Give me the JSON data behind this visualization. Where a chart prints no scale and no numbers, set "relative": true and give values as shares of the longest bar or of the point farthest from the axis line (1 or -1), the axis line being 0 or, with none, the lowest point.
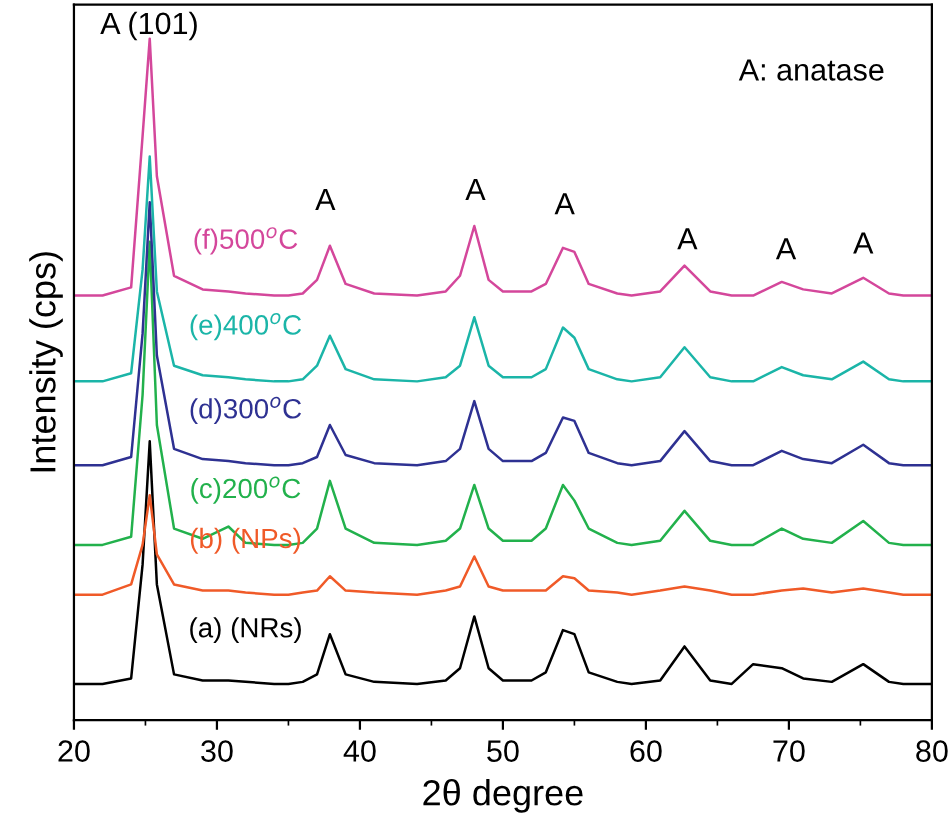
{
  "chart_data": {
    "type": "line",
    "relative": true,
    "xlabel": "2θ degree",
    "ylabel": "Intensity (cps)",
    "x": [
      20,
      21,
      22,
      24,
      24.8,
      25.3,
      25.8,
      27,
      29,
      30.8,
      32,
      34,
      35,
      36,
      37,
      37.9,
      39,
      41,
      44,
      46,
      47,
      48,
      49,
      50,
      52,
      53,
      54.2,
      55,
      56,
      58,
      59,
      61,
      62.7,
      64.5,
      66,
      67.5,
      69.5,
      71,
      73,
      75.2,
      77,
      78,
      80
    ],
    "xlim": [
      20,
      80
    ],
    "xticks": [
      20,
      30,
      40,
      50,
      60,
      70,
      80
    ],
    "grid": false,
    "legend": false,
    "marker": "none",
    "line_style": "solid",
    "series": [
      {
        "name": "(a) (NRs)",
        "color": "#000000",
        "values": [
          0.053,
          0.053,
          0.053,
          0.061,
          0.228,
          0.409,
          0.199,
          0.067,
          0.058,
          0.058,
          0.056,
          0.053,
          0.053,
          0.056,
          0.067,
          0.126,
          0.067,
          0.056,
          0.053,
          0.058,
          0.076,
          0.152,
          0.076,
          0.058,
          0.058,
          0.07,
          0.132,
          0.126,
          0.07,
          0.056,
          0.053,
          0.058,
          0.108,
          0.058,
          0.053,
          0.082,
          0.076,
          0.061,
          0.056,
          0.082,
          0.056,
          0.053,
          0.053
        ]
      },
      {
        "name": "(b) (NPs)",
        "color": "#f05a28",
        "values": [
          0.184,
          0.184,
          0.184,
          0.199,
          0.257,
          0.33,
          0.243,
          0.199,
          0.19,
          0.19,
          0.187,
          0.184,
          0.184,
          0.187,
          0.19,
          0.211,
          0.19,
          0.187,
          0.184,
          0.19,
          0.196,
          0.24,
          0.196,
          0.19,
          0.19,
          0.19,
          0.211,
          0.208,
          0.19,
          0.187,
          0.184,
          0.19,
          0.196,
          0.19,
          0.184,
          0.184,
          0.19,
          0.193,
          0.187,
          0.193,
          0.187,
          0.184,
          0.184
        ]
      },
      {
        "name": "(c)200$^{o}$C",
        "color": "#22b14c",
        "values": [
          0.257,
          0.257,
          0.257,
          0.269,
          0.477,
          0.702,
          0.433,
          0.281,
          0.266,
          0.284,
          0.26,
          0.257,
          0.257,
          0.26,
          0.281,
          0.351,
          0.281,
          0.26,
          0.257,
          0.263,
          0.281,
          0.345,
          0.281,
          0.263,
          0.263,
          0.281,
          0.345,
          0.322,
          0.281,
          0.26,
          0.257,
          0.263,
          0.307,
          0.263,
          0.257,
          0.257,
          0.281,
          0.266,
          0.26,
          0.292,
          0.26,
          0.257,
          0.257
        ]
      },
      {
        "name": "(d)300$^{o}$C",
        "color": "#2e3192",
        "values": [
          0.374,
          0.374,
          0.374,
          0.386,
          0.567,
          0.76,
          0.535,
          0.398,
          0.383,
          0.38,
          0.377,
          0.374,
          0.374,
          0.377,
          0.386,
          0.433,
          0.389,
          0.377,
          0.374,
          0.38,
          0.398,
          0.468,
          0.398,
          0.38,
          0.38,
          0.392,
          0.444,
          0.439,
          0.392,
          0.377,
          0.374,
          0.38,
          0.424,
          0.38,
          0.374,
          0.374,
          0.395,
          0.383,
          0.377,
          0.404,
          0.377,
          0.374,
          0.374
        ]
      },
      {
        "name": "(e)400$^{o}$C",
        "color": "#1bb5a8",
        "values": [
          0.497,
          0.497,
          0.497,
          0.509,
          0.661,
          0.827,
          0.629,
          0.52,
          0.506,
          0.503,
          0.5,
          0.497,
          0.497,
          0.5,
          0.52,
          0.564,
          0.515,
          0.5,
          0.497,
          0.503,
          0.52,
          0.591,
          0.52,
          0.503,
          0.503,
          0.515,
          0.576,
          0.561,
          0.515,
          0.5,
          0.497,
          0.503,
          0.547,
          0.503,
          0.497,
          0.497,
          0.518,
          0.506,
          0.5,
          0.526,
          0.5,
          0.497,
          0.497
        ]
      },
      {
        "name": "(f)500$^{o}$C",
        "color": "#d4479b",
        "values": [
          0.623,
          0.623,
          0.623,
          0.635,
          0.857,
          1,
          0.798,
          0.652,
          0.632,
          0.629,
          0.626,
          0.623,
          0.623,
          0.626,
          0.646,
          0.696,
          0.64,
          0.626,
          0.623,
          0.629,
          0.652,
          0.725,
          0.646,
          0.629,
          0.629,
          0.64,
          0.693,
          0.687,
          0.64,
          0.626,
          0.623,
          0.629,
          0.667,
          0.629,
          0.623,
          0.623,
          0.643,
          0.632,
          0.626,
          0.649,
          0.626,
          0.623,
          0.623
        ]
      }
    ],
    "annotations": [
      "A (101)",
      "A",
      "A",
      "A",
      "A",
      "A",
      "A",
      "A: anatase"
    ]
  }
}
